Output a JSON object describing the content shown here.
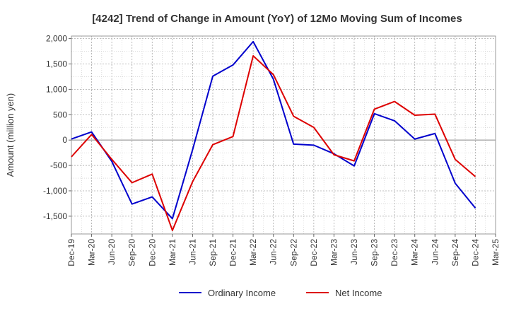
{
  "chart_data": {
    "type": "line",
    "title": "[4242]  Trend of Change in Amount (YoY) of 12Mo Moving Sum of Incomes",
    "xlabel": "",
    "ylabel": "Amount (million yen)",
    "ylim": [
      -1850,
      2050
    ],
    "yticks": [
      2000,
      1500,
      1000,
      500,
      0,
      -500,
      -1000,
      -1500
    ],
    "ytick_labels": [
      "2,000",
      "1,500",
      "1,000",
      "500",
      "0",
      "-500",
      "-1,000",
      "-1,500"
    ],
    "categories": [
      "Dec-19",
      "Mar-20",
      "Jun-20",
      "Sep-20",
      "Dec-20",
      "Mar-21",
      "Jun-21",
      "Sep-21",
      "Dec-21",
      "Mar-22",
      "Jun-22",
      "Sep-22",
      "Dec-22",
      "Mar-23",
      "Jun-23",
      "Sep-23",
      "Dec-23",
      "Mar-24",
      "Jun-24",
      "Sep-24",
      "Dec-24",
      "Mar-25"
    ],
    "series": [
      {
        "name": "Ordinary Income",
        "color": "#0000cc",
        "values": [
          20,
          160,
          -420,
          -1260,
          -1120,
          -1550,
          -190,
          1260,
          1480,
          1940,
          1200,
          -80,
          -100,
          -270,
          -510,
          520,
          380,
          20,
          130,
          -850,
          -1340,
          null
        ]
      },
      {
        "name": "Net Income",
        "color": "#dd0000",
        "values": [
          -330,
          110,
          -380,
          -840,
          -670,
          -1780,
          -820,
          -90,
          70,
          1660,
          1290,
          470,
          250,
          -290,
          -410,
          610,
          760,
          490,
          510,
          -380,
          -720,
          null
        ]
      }
    ],
    "legend_position": "bottom",
    "grid": true
  }
}
